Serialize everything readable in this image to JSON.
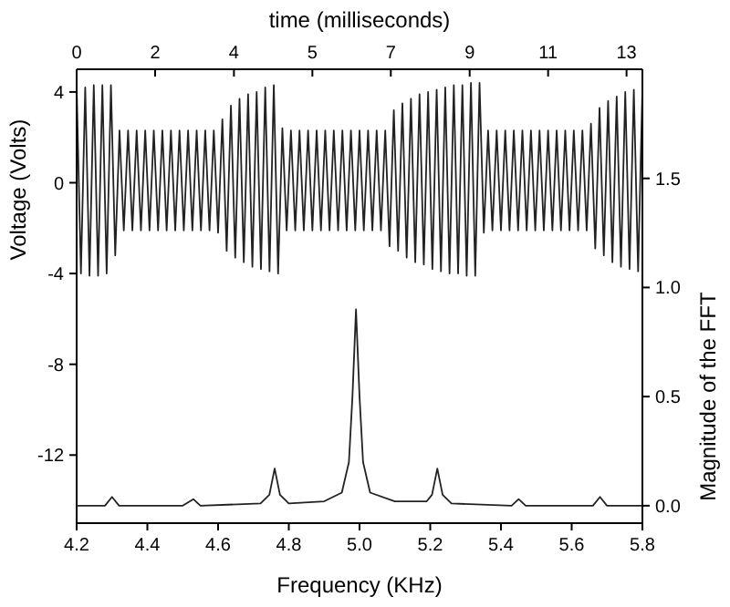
{
  "chart_data": [
    {
      "type": "line",
      "xlabel": "time (milliseconds)",
      "ylabel": "Voltage (Volts)",
      "xlim": [
        0,
        13.2
      ],
      "xticks": [
        {
          "value": 0,
          "label": "0"
        },
        {
          "value": 1.83,
          "label": "2"
        },
        {
          "value": 3.67,
          "label": "4"
        },
        {
          "value": 5.5,
          "label": "5"
        },
        {
          "value": 7.33,
          "label": "7"
        },
        {
          "value": 9.17,
          "label": "9"
        },
        {
          "value": 11,
          "label": "11"
        },
        {
          "value": 12.83,
          "label": "13"
        }
      ],
      "ylim": [
        -15,
        5
      ],
      "yticks": [
        4,
        0,
        -4,
        -8,
        -12
      ],
      "grid": false,
      "marker": "none",
      "line_style": "solid",
      "series": [
        {
          "color": "#222222",
          "x": [
            0,
            0.1,
            0.2,
            0.3,
            0.4,
            0.5,
            0.6,
            0.7,
            0.8,
            0.9,
            1,
            1.1,
            1.2,
            1.3,
            1.4,
            1.5,
            1.6,
            1.7,
            1.8,
            1.9,
            2,
            2.1,
            2.2,
            2.3,
            2.4,
            2.5,
            2.6,
            2.7,
            2.8,
            2.9,
            3,
            3.1,
            3.2,
            3.3,
            3.4,
            3.5,
            3.6,
            3.7,
            3.8,
            3.9,
            4,
            4.1,
            4.2,
            4.3,
            4.4,
            4.5,
            4.6,
            4.7,
            4.8,
            4.9,
            5,
            5.1,
            5.2,
            5.3,
            5.4,
            5.5,
            5.6,
            5.7,
            5.8,
            5.9,
            6,
            6.1,
            6.2,
            6.3,
            6.4,
            6.5,
            6.6,
            6.7,
            6.8,
            6.9,
            7,
            7.1,
            7.2,
            7.3,
            7.4,
            7.5,
            7.6,
            7.7,
            7.8,
            7.9,
            8,
            8.1,
            8.2,
            8.3,
            8.4,
            8.5,
            8.6,
            8.7,
            8.8,
            8.9,
            9,
            9.1,
            9.2,
            9.3,
            9.4,
            9.5,
            9.6,
            9.7,
            9.8,
            9.9,
            10,
            10.1,
            10.2,
            10.3,
            10.4,
            10.5,
            10.6,
            10.7,
            10.8,
            10.9,
            11,
            11.1,
            11.2,
            11.3,
            11.4,
            11.5,
            11.6,
            11.7,
            11.8,
            11.9,
            12,
            12.1,
            12.2,
            12.3,
            12.4,
            12.5,
            12.6,
            12.7,
            12.8,
            12.9,
            13,
            13.1,
            13.2
          ],
          "values": [
            4.2,
            -4.0,
            4.2,
            -4.1,
            4.3,
            -4.1,
            4.3,
            -4.0,
            4.3,
            -3.2,
            2.3,
            -2.1,
            2.3,
            -2.1,
            2.3,
            -2.1,
            2.3,
            -2.1,
            2.3,
            -2.1,
            2.3,
            -2.1,
            2.3,
            -2.1,
            2.3,
            -2.1,
            2.3,
            -2.1,
            2.3,
            -2.1,
            2.3,
            -2.1,
            2.3,
            -2.2,
            2.8,
            -3.0,
            3.4,
            -3.3,
            3.7,
            -3.5,
            3.9,
            -3.7,
            4.0,
            -3.8,
            4.2,
            -3.9,
            4.3,
            -4.0,
            2.4,
            -2.1,
            2.3,
            -2.1,
            2.3,
            -2.1,
            2.3,
            -2.1,
            2.3,
            -2.1,
            2.3,
            -2.1,
            2.3,
            -2.1,
            2.3,
            -2.1,
            2.3,
            -2.1,
            2.3,
            -2.1,
            2.3,
            -2.1,
            2.3,
            -2.1,
            2.3,
            -2.8,
            3.2,
            -3.0,
            3.5,
            -3.3,
            3.7,
            -3.5,
            3.9,
            -3.6,
            4.0,
            -3.8,
            4.1,
            -3.9,
            4.2,
            -4.0,
            4.3,
            -4.0,
            4.3,
            -4.1,
            4.4,
            -4.1,
            4.4,
            -2.2,
            2.3,
            -2.1,
            2.3,
            -2.1,
            2.3,
            -2.1,
            2.3,
            -2.1,
            2.3,
            -2.1,
            2.3,
            -2.1,
            2.3,
            -2.1,
            2.3,
            -2.1,
            2.3,
            -2.1,
            2.3,
            -2.1,
            2.3,
            -2.1,
            2.3,
            -2.1,
            2.6,
            -2.9,
            3.3,
            -3.2,
            3.6,
            -3.5,
            3.8,
            -3.7,
            4.0,
            -3.8,
            4.1,
            -3.9,
            4.1
          ]
        }
      ]
    },
    {
      "type": "line",
      "xlabel": "Frequency (KHz)",
      "ylabel": "Magnitude of the FFT",
      "xlim": [
        4.2,
        5.8
      ],
      "xticks": [
        4.2,
        4.4,
        4.6,
        4.8,
        {
          "value": 5,
          "label": "5.0"
        },
        5.2,
        5.4,
        5.6,
        5.8
      ],
      "ylim": [
        -0.08,
        2.0
      ],
      "yticks": [
        {
          "value": 0,
          "label": "0.0"
        },
        {
          "value": 0.5,
          "label": "0.5"
        },
        {
          "value": 1,
          "label": "1.0"
        },
        {
          "value": 1.5,
          "label": "1.5"
        }
      ],
      "grid": false,
      "marker": "none",
      "line_style": "solid",
      "series": [
        {
          "color": "#222222",
          "x": [
            4.2,
            4.28,
            4.3,
            4.32,
            4.5,
            4.53,
            4.55,
            4.72,
            4.745,
            4.76,
            4.775,
            4.8,
            4.9,
            4.95,
            4.97,
            4.98,
            4.99,
            5.0,
            5.01,
            5.03,
            5.1,
            5.19,
            5.205,
            5.22,
            5.235,
            5.26,
            5.43,
            5.45,
            5.47,
            5.66,
            5.68,
            5.7,
            5.8
          ],
          "values": [
            0,
            0,
            0.04,
            0,
            0,
            0.03,
            0,
            0.01,
            0.05,
            0.17,
            0.05,
            0.01,
            0.02,
            0.06,
            0.2,
            0.5,
            0.9,
            0.5,
            0.2,
            0.06,
            0.02,
            0.02,
            0.05,
            0.17,
            0.05,
            0.01,
            0,
            0.03,
            0,
            0,
            0.04,
            0,
            0
          ]
        }
      ]
    }
  ]
}
